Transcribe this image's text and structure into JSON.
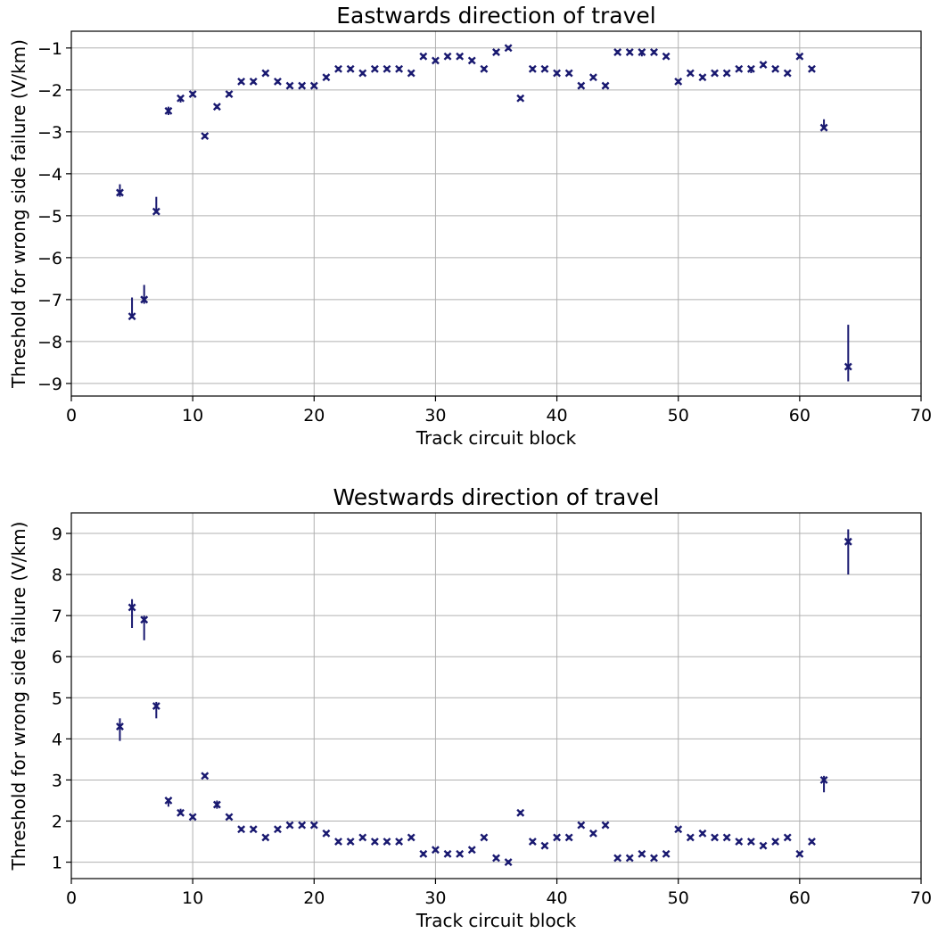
{
  "chart_data": [
    {
      "type": "scatter",
      "title": "Eastwards direction of travel",
      "xlabel": "Track circuit block",
      "ylabel": "Threshold for wrong side failure (V/km)",
      "xlim": [
        0,
        70
      ],
      "ylim": [
        -9.3,
        -0.6
      ],
      "xticks": [
        0,
        10,
        20,
        30,
        40,
        50,
        60,
        70
      ],
      "yticks": [
        -9,
        -8,
        -7,
        -6,
        -5,
        -4,
        -3,
        -2,
        -1
      ],
      "grid": true,
      "marker": "x",
      "color": "#191970",
      "series": [
        {
          "x": [
            4,
            5,
            6,
            7,
            8,
            9,
            10,
            11,
            12,
            13,
            14,
            15,
            16,
            17,
            18,
            19,
            20,
            21,
            22,
            23,
            24,
            25,
            26,
            27,
            28,
            29,
            30,
            31,
            32,
            33,
            34,
            35,
            36,
            37,
            38,
            39,
            40,
            41,
            42,
            43,
            44,
            45,
            46,
            47,
            48,
            49,
            50,
            51,
            52,
            53,
            54,
            55,
            56,
            57,
            58,
            59,
            60,
            61,
            62,
            64
          ],
          "y": [
            -4.45,
            -7.4,
            -7.0,
            -4.9,
            -2.5,
            -2.2,
            -2.1,
            -3.1,
            -2.4,
            -2.1,
            -1.8,
            -1.8,
            -1.6,
            -1.8,
            -1.9,
            -1.9,
            -1.9,
            -1.7,
            -1.5,
            -1.5,
            -1.6,
            -1.5,
            -1.5,
            -1.5,
            -1.6,
            -1.2,
            -1.3,
            -1.2,
            -1.2,
            -1.3,
            -1.5,
            -1.1,
            -1.0,
            -2.2,
            -1.5,
            -1.5,
            -1.6,
            -1.6,
            -1.9,
            -1.7,
            -1.9,
            -1.1,
            -1.1,
            -1.1,
            -1.1,
            -1.2,
            -1.8,
            -1.6,
            -1.7,
            -1.6,
            -1.6,
            -1.5,
            -1.5,
            -1.4,
            -1.5,
            -1.6,
            -1.2,
            -1.5,
            -2.9,
            -8.6
          ],
          "y_low": [
            -4.55,
            -7.45,
            -7.1,
            -4.95,
            -2.6,
            -2.3,
            -2.15,
            -3.15,
            -2.45,
            -2.15,
            -1.85,
            -1.85,
            -1.65,
            -1.85,
            -1.95,
            -1.95,
            -1.95,
            -1.75,
            -1.55,
            -1.55,
            -1.65,
            -1.55,
            -1.55,
            -1.55,
            -1.65,
            -1.25,
            -1.35,
            -1.25,
            -1.25,
            -1.35,
            -1.55,
            -1.15,
            -1.05,
            -2.25,
            -1.55,
            -1.55,
            -1.65,
            -1.65,
            -1.95,
            -1.75,
            -1.95,
            -1.15,
            -1.15,
            -1.2,
            -1.15,
            -1.25,
            -1.85,
            -1.65,
            -1.75,
            -1.65,
            -1.65,
            -1.55,
            -1.6,
            -1.45,
            -1.55,
            -1.65,
            -1.25,
            -1.55,
            -2.95,
            -8.95
          ],
          "y_high": [
            -4.25,
            -6.95,
            -6.65,
            -4.55,
            -2.4,
            -2.15,
            -2.05,
            -3.05,
            -2.35,
            -2.05,
            -1.75,
            -1.75,
            -1.55,
            -1.75,
            -1.85,
            -1.85,
            -1.85,
            -1.65,
            -1.45,
            -1.45,
            -1.55,
            -1.45,
            -1.45,
            -1.45,
            -1.55,
            -1.15,
            -1.25,
            -1.15,
            -1.15,
            -1.25,
            -1.45,
            -1.05,
            -0.95,
            -2.15,
            -1.45,
            -1.45,
            -1.55,
            -1.55,
            -1.85,
            -1.65,
            -1.85,
            -1.05,
            -1.05,
            -1.05,
            -1.05,
            -1.15,
            -1.75,
            -1.55,
            -1.65,
            -1.55,
            -1.55,
            -1.45,
            -1.45,
            -1.35,
            -1.45,
            -1.55,
            -1.15,
            -1.45,
            -2.7,
            -7.6
          ]
        }
      ]
    },
    {
      "type": "scatter",
      "title": "Westwards direction of travel",
      "xlabel": "Track circuit block",
      "ylabel": "Threshold for wrong side failure (V/km)",
      "xlim": [
        0,
        70
      ],
      "ylim": [
        0.6,
        9.5
      ],
      "xticks": [
        0,
        10,
        20,
        30,
        40,
        50,
        60,
        70
      ],
      "yticks": [
        1,
        2,
        3,
        4,
        5,
        6,
        7,
        8,
        9
      ],
      "grid": true,
      "marker": "x",
      "color": "#191970",
      "series": [
        {
          "x": [
            4,
            5,
            6,
            7,
            8,
            9,
            10,
            11,
            12,
            13,
            14,
            15,
            16,
            17,
            18,
            19,
            20,
            21,
            22,
            23,
            24,
            25,
            26,
            27,
            28,
            29,
            30,
            31,
            32,
            33,
            34,
            35,
            36,
            37,
            38,
            39,
            40,
            41,
            42,
            43,
            44,
            45,
            46,
            47,
            48,
            49,
            50,
            51,
            52,
            53,
            54,
            55,
            56,
            57,
            58,
            59,
            60,
            61,
            62,
            64
          ],
          "y": [
            4.3,
            7.2,
            6.9,
            4.8,
            2.5,
            2.2,
            2.1,
            3.1,
            2.4,
            2.1,
            1.8,
            1.8,
            1.6,
            1.8,
            1.9,
            1.9,
            1.9,
            1.7,
            1.5,
            1.5,
            1.6,
            1.5,
            1.5,
            1.5,
            1.6,
            1.2,
            1.3,
            1.2,
            1.2,
            1.3,
            1.6,
            1.1,
            1.0,
            2.2,
            1.5,
            1.4,
            1.6,
            1.6,
            1.9,
            1.7,
            1.9,
            1.1,
            1.1,
            1.2,
            1.1,
            1.2,
            1.8,
            1.6,
            1.7,
            1.6,
            1.6,
            1.5,
            1.5,
            1.4,
            1.5,
            1.6,
            1.2,
            1.5,
            3.0,
            8.8
          ],
          "y_low": [
            3.95,
            6.7,
            6.4,
            4.5,
            2.35,
            2.15,
            2.05,
            3.05,
            2.3,
            2.05,
            1.75,
            1.75,
            1.55,
            1.75,
            1.85,
            1.85,
            1.85,
            1.65,
            1.45,
            1.45,
            1.55,
            1.45,
            1.45,
            1.45,
            1.55,
            1.15,
            1.25,
            1.15,
            1.15,
            1.25,
            1.55,
            1.05,
            0.95,
            2.15,
            1.45,
            1.35,
            1.55,
            1.55,
            1.85,
            1.65,
            1.85,
            1.05,
            1.05,
            1.15,
            1.05,
            1.15,
            1.75,
            1.55,
            1.65,
            1.55,
            1.55,
            1.45,
            1.45,
            1.35,
            1.45,
            1.55,
            1.15,
            1.45,
            2.7,
            8.0
          ],
          "y_high": [
            4.5,
            7.4,
            7.0,
            4.9,
            2.55,
            2.3,
            2.15,
            3.15,
            2.5,
            2.15,
            1.85,
            1.85,
            1.65,
            1.85,
            1.95,
            1.95,
            1.95,
            1.75,
            1.55,
            1.55,
            1.65,
            1.55,
            1.55,
            1.55,
            1.65,
            1.25,
            1.35,
            1.25,
            1.25,
            1.35,
            1.65,
            1.15,
            1.05,
            2.25,
            1.55,
            1.45,
            1.65,
            1.65,
            1.95,
            1.75,
            1.95,
            1.15,
            1.15,
            1.25,
            1.15,
            1.25,
            1.85,
            1.65,
            1.75,
            1.65,
            1.65,
            1.55,
            1.55,
            1.45,
            1.55,
            1.65,
            1.25,
            1.55,
            3.1,
            9.1
          ]
        }
      ]
    }
  ]
}
